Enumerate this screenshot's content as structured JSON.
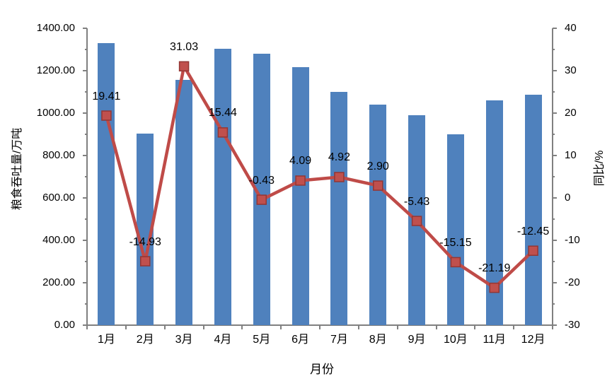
{
  "chart_data": {
    "type": "combo-bar-line",
    "title": "",
    "legend": "none",
    "grid": "off",
    "categories": [
      "1月",
      "2月",
      "3月",
      "4月",
      "5月",
      "6月",
      "7月",
      "8月",
      "9月",
      "10月",
      "11月",
      "12月"
    ],
    "series": [
      {
        "name": "粮食吞吐量",
        "type": "bar",
        "axis": "left",
        "color": "#4f81bd",
        "values": [
          1330,
          902,
          1158,
          1302,
          1280,
          1216,
          1100,
          1040,
          990,
          900,
          1060,
          1088
        ]
      },
      {
        "name": "同比",
        "type": "line",
        "axis": "right",
        "color": "#bf4b48",
        "marker_fill": "#c0504d",
        "marker_border": "#943634",
        "values": [
          19.41,
          -14.93,
          31.03,
          15.44,
          -0.43,
          4.09,
          4.92,
          2.9,
          -5.43,
          -15.15,
          -21.19,
          -12.45
        ],
        "data_labels": [
          "19.41",
          "-14.93",
          "31.03",
          "15.44",
          "-0.43",
          "4.09",
          "4.92",
          "2.90",
          "-5.43",
          "-15.15",
          "-21.19",
          "-12.45"
        ]
      }
    ],
    "axes": {
      "left": {
        "title": "粮食吞吐量/万吨",
        "min": 0,
        "max": 1400,
        "major_step": 200,
        "minor_step": 100,
        "tick_labels": [
          "0.00",
          "200.00",
          "400.00",
          "600.00",
          "800.00",
          "1000.00",
          "1200.00",
          "1400.00"
        ]
      },
      "right": {
        "title": "同比/%",
        "min": -30,
        "max": 40,
        "major_step": 10,
        "minor_step": 5,
        "tick_labels": [
          "-30",
          "-20",
          "-10",
          "0",
          "10",
          "20",
          "30",
          "40"
        ]
      },
      "x": {
        "title": "月份"
      }
    }
  }
}
